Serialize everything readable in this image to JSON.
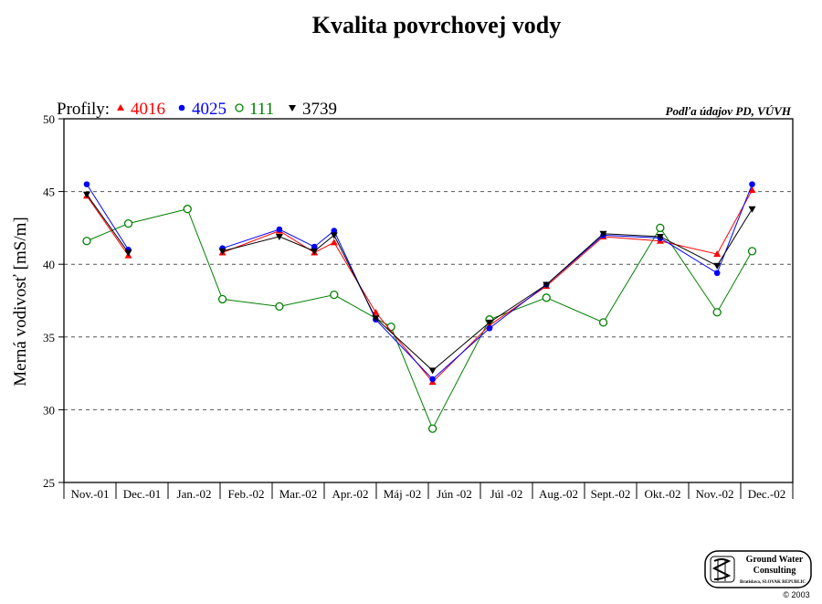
{
  "chart_data": {
    "type": "line",
    "title": "Kvalita povrchovej vody",
    "ylabel": "Merná vodivosť [mS/m]",
    "xlabel": "",
    "ylim": [
      25,
      50
    ],
    "yticks": [
      25,
      30,
      35,
      40,
      45,
      50
    ],
    "grid_y": [
      30,
      35,
      40,
      45
    ],
    "categories": [
      "Nov.-01",
      "Dec.-01",
      "Jan.-02",
      "Feb.-02",
      "Mar.-02",
      "Apr.-02",
      "Máj -02",
      "Jún -02",
      "Júl -02",
      "Aug.-02",
      "Sept.-02",
      "Okt.-02",
      "Nov.-02",
      "Dec.-02"
    ],
    "legend_prefix": "Profily:",
    "legend_placement": "top-left",
    "source_note": "Podľa údajov PD, VÚVH",
    "series": [
      {
        "name": "4016",
        "color": "#ff0000",
        "marker": "triangle-up",
        "points": [
          [
            0,
            44.7
          ],
          [
            0.95,
            40.6
          ],
          [
            3.1,
            40.8
          ],
          [
            4.4,
            42.3
          ],
          [
            5.2,
            40.8
          ],
          [
            5.65,
            41.5
          ],
          [
            6.6,
            36.7
          ],
          [
            7.9,
            31.9
          ],
          [
            9.2,
            35.8
          ],
          [
            10.5,
            38.5
          ],
          [
            11.8,
            41.9
          ],
          [
            13.1,
            41.6
          ],
          [
            14.4,
            40.7
          ],
          [
            15.2,
            45.1
          ]
        ]
      },
      {
        "name": "4025",
        "color": "#0000ff",
        "marker": "circle-filled",
        "points": [
          [
            0,
            45.5
          ],
          [
            0.95,
            41.0
          ],
          [
            3.1,
            41.1
          ],
          [
            4.4,
            42.4
          ],
          [
            5.2,
            41.2
          ],
          [
            5.65,
            42.3
          ],
          [
            6.6,
            36.2
          ],
          [
            7.9,
            32.1
          ],
          [
            9.2,
            35.6
          ],
          [
            10.5,
            38.6
          ],
          [
            11.8,
            42.0
          ],
          [
            13.1,
            41.8
          ],
          [
            14.4,
            39.4
          ],
          [
            15.2,
            45.5
          ]
        ]
      },
      {
        "name": "111",
        "color": "#008000",
        "marker": "circle-open",
        "points": [
          [
            0,
            41.6
          ],
          [
            0.95,
            42.8
          ],
          [
            2.3,
            43.8
          ],
          [
            3.1,
            37.6
          ],
          [
            4.4,
            37.1
          ],
          [
            5.65,
            37.9
          ],
          [
            6.95,
            35.7
          ],
          [
            7.9,
            28.7
          ],
          [
            9.2,
            36.2
          ],
          [
            10.5,
            37.7
          ],
          [
            11.8,
            36.0
          ],
          [
            13.1,
            42.5
          ],
          [
            14.4,
            36.7
          ],
          [
            15.2,
            40.9
          ]
        ]
      },
      {
        "name": "3739",
        "color": "#000000",
        "marker": "triangle-down",
        "points": [
          [
            0,
            44.8
          ],
          [
            0.95,
            40.8
          ],
          [
            3.1,
            40.9
          ],
          [
            4.4,
            41.9
          ],
          [
            5.2,
            40.9
          ],
          [
            5.65,
            42.0
          ],
          [
            6.6,
            36.3
          ],
          [
            7.9,
            32.7
          ],
          [
            9.2,
            36.0
          ],
          [
            10.5,
            38.6
          ],
          [
            11.8,
            42.1
          ],
          [
            13.1,
            41.9
          ],
          [
            14.4,
            39.9
          ],
          [
            15.2,
            43.8
          ]
        ]
      }
    ]
  },
  "logo": {
    "line1": "Ground Water",
    "line2": "Consulting",
    "line3": "Bratislava, SLOVAK REPUBLIC",
    "copyright": "© 2003"
  }
}
